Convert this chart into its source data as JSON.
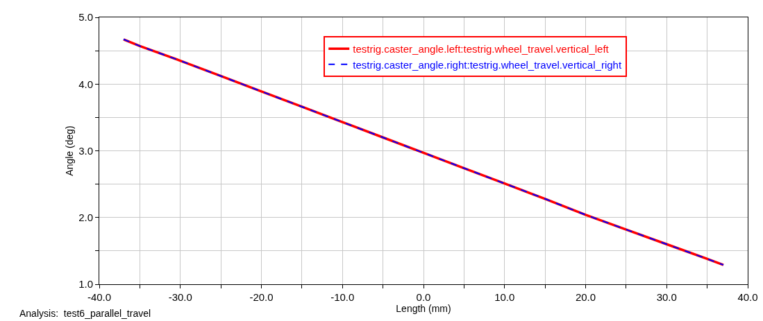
{
  "chart_data": {
    "type": "line",
    "xlabel": "Length (mm)",
    "ylabel": "Angle (deg)",
    "annotations": [
      "Analysis:  test6_parallel_travel"
    ],
    "x": [
      -37,
      -35,
      -30,
      -25,
      -20,
      -15,
      -10,
      -5,
      0,
      5,
      10,
      15,
      20,
      25,
      30,
      35,
      37
    ],
    "series": [
      {
        "name": "testrig.caster_angle.left:testrig.wheel_travel.vertical_left",
        "color": "#ff0000",
        "line_style": "solid",
        "values": [
          4.67,
          4.57,
          4.35,
          4.12,
          3.89,
          3.66,
          3.43,
          3.2,
          2.97,
          2.74,
          2.51,
          2.28,
          2.04,
          1.82,
          1.6,
          1.38,
          1.29
        ]
      },
      {
        "name": "testrig.caster_angle.right:testrig.wheel_travel.vertical_right",
        "color": "#0000ff",
        "line_style": "dashed",
        "values": [
          4.67,
          4.57,
          4.35,
          4.12,
          3.89,
          3.66,
          3.43,
          3.2,
          2.97,
          2.74,
          2.51,
          2.28,
          2.04,
          1.82,
          1.6,
          1.38,
          1.29
        ]
      }
    ],
    "xlim": [
      -40,
      40
    ],
    "xticks": [
      {
        "value": -40,
        "label": "-40.0"
      },
      {
        "value": -35,
        "label": null
      },
      {
        "value": -30,
        "label": "-30.0"
      },
      {
        "value": -25,
        "label": null
      },
      {
        "value": -20,
        "label": "-20.0"
      },
      {
        "value": -15,
        "label": null
      },
      {
        "value": -10,
        "label": "-10.0"
      },
      {
        "value": -5,
        "label": null
      },
      {
        "value": 0,
        "label": "0.0"
      },
      {
        "value": 5,
        "label": null
      },
      {
        "value": 10,
        "label": "10.0"
      },
      {
        "value": 15,
        "label": null
      },
      {
        "value": 20,
        "label": "20.0"
      },
      {
        "value": 25,
        "label": null
      },
      {
        "value": 30,
        "label": "30.0"
      },
      {
        "value": 35,
        "label": null
      },
      {
        "value": 40,
        "label": "40.0"
      }
    ],
    "ylim": [
      1,
      5
    ],
    "yticks": [
      {
        "value": 1,
        "label": "1.0"
      },
      {
        "value": 1.5,
        "label": null
      },
      {
        "value": 2,
        "label": "2.0"
      },
      {
        "value": 2.5,
        "label": null
      },
      {
        "value": 3,
        "label": "3.0"
      },
      {
        "value": 3.5,
        "label": null
      },
      {
        "value": 4,
        "label": "4.0"
      },
      {
        "value": 4.5,
        "label": null
      },
      {
        "value": 5,
        "label": "5.0"
      }
    ],
    "grid": true,
    "legend": "top",
    "marker": "none"
  }
}
